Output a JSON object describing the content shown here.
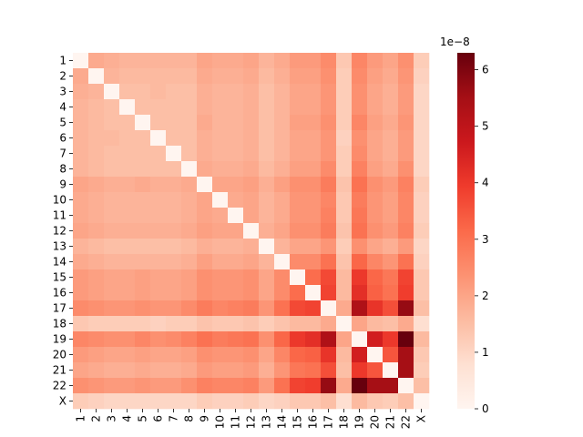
{
  "chart_data": {
    "type": "heatmap",
    "row_labels": [
      "1",
      "2",
      "3",
      "4",
      "5",
      "6",
      "7",
      "8",
      "9",
      "10",
      "11",
      "12",
      "13",
      "14",
      "15",
      "16",
      "17",
      "18",
      "19",
      "20",
      "21",
      "22",
      "X"
    ],
    "col_labels": [
      "1",
      "2",
      "3",
      "4",
      "5",
      "6",
      "7",
      "8",
      "9",
      "10",
      "11",
      "12",
      "13",
      "14",
      "15",
      "16",
      "17",
      "18",
      "19",
      "20",
      "21",
      "22",
      "X"
    ],
    "colorbar": {
      "ticks": [
        "0",
        "1",
        "2",
        "3",
        "4",
        "5",
        "6"
      ],
      "offset_text": "1e−8",
      "vmin": 0,
      "vmax": 6.3,
      "colormap": "Reds",
      "color_low": "#fff5f0",
      "color_high": "#67000d"
    },
    "values": [
      [
        0.0,
        1.9,
        1.8,
        1.7,
        1.7,
        1.7,
        1.7,
        1.7,
        2.0,
        1.9,
        1.9,
        2.0,
        1.7,
        1.9,
        2.2,
        2.2,
        2.5,
        1.3,
        2.6,
        2.2,
        2.0,
        2.4,
        1.2
      ],
      [
        1.9,
        0.0,
        1.7,
        1.6,
        1.6,
        1.6,
        1.6,
        1.6,
        1.9,
        1.8,
        1.8,
        1.9,
        1.6,
        1.8,
        2.1,
        2.1,
        2.4,
        1.2,
        2.5,
        2.1,
        1.9,
        2.3,
        1.1
      ],
      [
        1.8,
        1.7,
        0.0,
        1.5,
        1.5,
        1.6,
        1.5,
        1.5,
        1.8,
        1.7,
        1.7,
        1.8,
        1.5,
        1.7,
        2.0,
        2.0,
        2.3,
        1.2,
        2.4,
        2.0,
        1.8,
        2.2,
        1.0
      ],
      [
        1.7,
        1.6,
        1.5,
        0.0,
        1.5,
        1.5,
        1.5,
        1.5,
        1.8,
        1.7,
        1.7,
        1.8,
        1.5,
        1.7,
        2.0,
        2.0,
        2.3,
        1.2,
        2.4,
        2.0,
        1.8,
        2.2,
        1.0
      ],
      [
        1.7,
        1.6,
        1.5,
        1.5,
        0.0,
        1.5,
        1.5,
        1.5,
        1.9,
        1.7,
        1.7,
        1.8,
        1.5,
        1.7,
        2.1,
        2.1,
        2.4,
        1.2,
        2.6,
        2.1,
        1.9,
        2.3,
        1.0
      ],
      [
        1.7,
        1.6,
        1.6,
        1.5,
        1.5,
        0.0,
        1.5,
        1.5,
        1.8,
        1.7,
        1.7,
        1.8,
        1.5,
        1.7,
        2.0,
        2.0,
        2.3,
        1.1,
        2.4,
        2.0,
        1.8,
        2.2,
        1.0
      ],
      [
        1.7,
        1.6,
        1.5,
        1.5,
        1.5,
        1.5,
        0.0,
        1.5,
        1.8,
        1.7,
        1.7,
        1.8,
        1.5,
        1.7,
        2.0,
        2.0,
        2.3,
        1.2,
        2.5,
        2.0,
        1.8,
        2.2,
        1.0
      ],
      [
        1.7,
        1.6,
        1.5,
        1.5,
        1.5,
        1.5,
        1.5,
        0.0,
        1.9,
        1.8,
        1.8,
        1.9,
        1.6,
        1.8,
        2.1,
        2.1,
        2.5,
        1.2,
        2.7,
        2.1,
        1.9,
        2.4,
        1.0
      ],
      [
        2.0,
        1.9,
        1.8,
        1.8,
        1.9,
        1.8,
        1.8,
        1.9,
        0.0,
        2.0,
        2.0,
        2.1,
        1.8,
        2.1,
        2.4,
        2.4,
        2.8,
        1.4,
        3.0,
        2.4,
        2.2,
        2.7,
        1.2
      ],
      [
        1.9,
        1.8,
        1.7,
        1.7,
        1.7,
        1.7,
        1.7,
        1.8,
        2.0,
        0.0,
        1.9,
        2.0,
        1.7,
        1.9,
        2.3,
        2.3,
        2.6,
        1.3,
        2.8,
        2.3,
        2.1,
        2.6,
        1.1
      ],
      [
        1.9,
        1.8,
        1.7,
        1.7,
        1.7,
        1.7,
        1.7,
        1.8,
        2.0,
        1.9,
        0.0,
        2.0,
        1.7,
        1.9,
        2.3,
        2.3,
        2.7,
        1.3,
        2.9,
        2.3,
        2.1,
        2.6,
        1.1
      ],
      [
        2.0,
        1.9,
        1.8,
        1.8,
        1.8,
        1.8,
        1.8,
        1.9,
        2.1,
        2.0,
        2.0,
        0.0,
        1.8,
        2.0,
        2.4,
        2.4,
        2.8,
        1.4,
        3.0,
        2.4,
        2.2,
        2.7,
        1.2
      ],
      [
        1.7,
        1.6,
        1.5,
        1.5,
        1.5,
        1.5,
        1.5,
        1.6,
        1.8,
        1.7,
        1.7,
        1.8,
        0.0,
        1.7,
        2.0,
        2.0,
        2.3,
        1.2,
        2.4,
        2.0,
        1.8,
        2.2,
        1.0
      ],
      [
        1.9,
        1.8,
        1.7,
        1.7,
        1.7,
        1.7,
        1.7,
        1.8,
        2.1,
        1.9,
        1.9,
        2.0,
        1.7,
        0.0,
        2.5,
        2.5,
        3.0,
        1.4,
        3.2,
        2.6,
        2.3,
        3.0,
        1.1
      ],
      [
        2.2,
        2.1,
        2.0,
        2.0,
        2.1,
        2.0,
        2.0,
        2.1,
        2.4,
        2.3,
        2.3,
        2.4,
        2.0,
        2.5,
        0.0,
        3.1,
        3.7,
        1.6,
        4.0,
        3.2,
        2.9,
        3.8,
        1.3
      ],
      [
        2.2,
        2.1,
        2.0,
        2.0,
        2.1,
        2.0,
        2.0,
        2.1,
        2.4,
        2.3,
        2.3,
        2.4,
        2.0,
        2.5,
        3.1,
        0.0,
        3.8,
        1.6,
        4.2,
        3.3,
        3.0,
        3.9,
        1.3
      ],
      [
        2.5,
        2.4,
        2.3,
        2.3,
        2.4,
        2.3,
        2.3,
        2.5,
        2.8,
        2.6,
        2.7,
        2.8,
        2.3,
        3.0,
        3.7,
        3.8,
        0.0,
        1.9,
        5.3,
        4.1,
        3.6,
        5.7,
        1.5
      ],
      [
        1.3,
        1.2,
        1.2,
        1.2,
        1.2,
        1.1,
        1.2,
        1.2,
        1.4,
        1.3,
        1.3,
        1.4,
        1.2,
        1.4,
        1.6,
        1.6,
        1.9,
        0.0,
        2.0,
        1.6,
        1.5,
        1.9,
        0.8
      ],
      [
        2.6,
        2.5,
        2.4,
        2.4,
        2.6,
        2.4,
        2.5,
        2.7,
        3.0,
        2.8,
        2.9,
        3.0,
        2.4,
        3.2,
        4.0,
        4.2,
        5.3,
        2.0,
        0.0,
        4.6,
        4.0,
        6.3,
        1.6
      ],
      [
        2.2,
        2.1,
        2.0,
        2.0,
        2.1,
        2.0,
        2.0,
        2.1,
        2.4,
        2.3,
        2.3,
        2.4,
        2.0,
        2.6,
        3.2,
        3.3,
        4.1,
        1.6,
        4.6,
        0.0,
        3.5,
        5.5,
        1.3
      ],
      [
        2.0,
        1.9,
        1.8,
        1.8,
        1.9,
        1.8,
        1.8,
        1.9,
        2.2,
        2.1,
        2.1,
        2.2,
        1.8,
        2.3,
        2.9,
        3.0,
        3.6,
        1.5,
        4.0,
        3.5,
        0.0,
        5.5,
        1.2
      ],
      [
        2.4,
        2.3,
        2.2,
        2.2,
        2.3,
        2.2,
        2.2,
        2.4,
        2.7,
        2.6,
        2.6,
        2.7,
        2.2,
        3.0,
        3.8,
        3.9,
        5.7,
        1.9,
        6.3,
        5.5,
        5.5,
        0.0,
        1.5
      ],
      [
        1.2,
        1.1,
        1.0,
        1.0,
        1.0,
        1.0,
        1.0,
        1.0,
        1.2,
        1.1,
        1.1,
        1.2,
        1.0,
        1.1,
        1.3,
        1.3,
        1.5,
        0.8,
        1.6,
        1.3,
        1.2,
        1.5,
        0.0
      ]
    ]
  }
}
